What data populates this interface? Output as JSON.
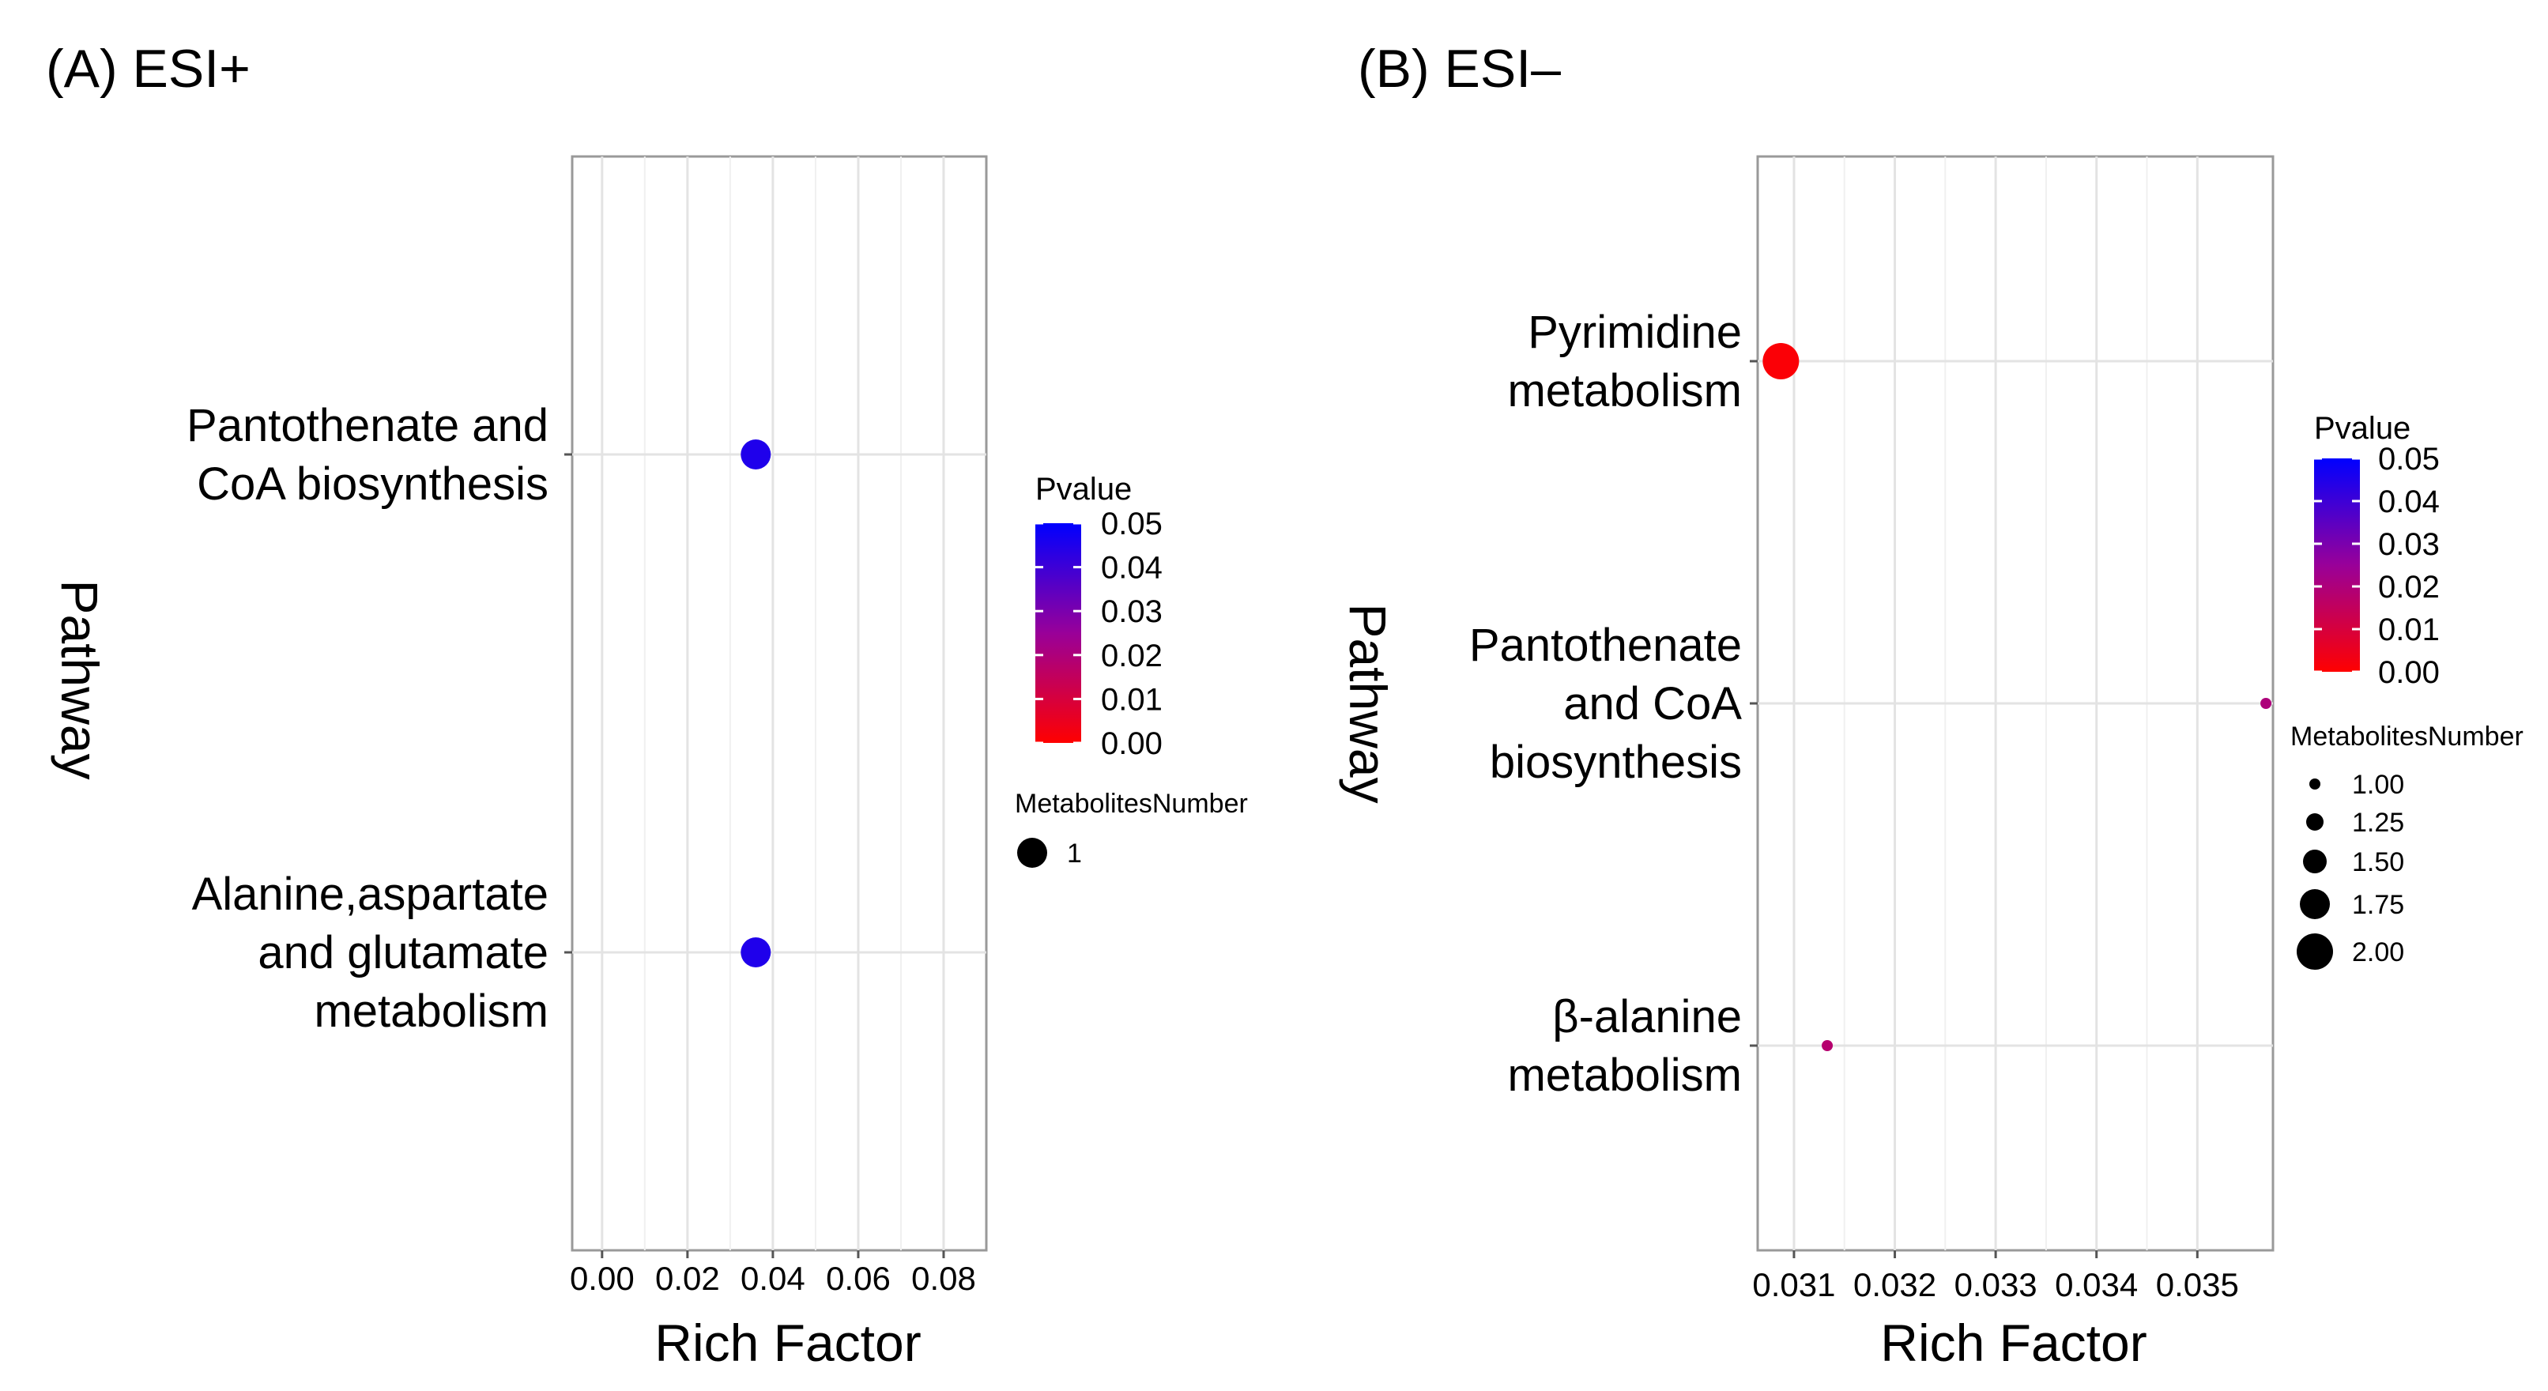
{
  "chart_data": [
    {
      "panel_label": "(A) ESI+",
      "type": "scatter",
      "xlabel": "Rich Factor",
      "ylabel": "Pathway",
      "xlim": [
        -0.007,
        0.09
      ],
      "x_ticks": [
        0.0,
        0.02,
        0.04,
        0.06,
        0.08
      ],
      "x_tick_labels": [
        "0.00",
        "0.02",
        "0.04",
        "0.06",
        "0.08"
      ],
      "categories_top_to_bottom": [
        [
          "Pantothenate and",
          "CoA biosynthesis"
        ],
        [
          "Alanine,aspartate",
          "and glutamate",
          "metabolism"
        ]
      ],
      "points": [
        {
          "pathway_index": 0,
          "rich_factor": 0.036,
          "pvalue": 0.045,
          "metabolites_number": 1
        },
        {
          "pathway_index": 1,
          "rich_factor": 0.036,
          "pvalue": 0.045,
          "metabolites_number": 1
        }
      ],
      "color_legend": {
        "title": "Pvalue",
        "ticks": [
          "0.05",
          "0.04",
          "0.03",
          "0.02",
          "0.01",
          "0.00"
        ],
        "range": [
          0.0,
          0.05
        ],
        "low_color": "#ff0000",
        "high_color": "#0000ff"
      },
      "size_legend": {
        "title": "MetabolitesNumber",
        "entries": [
          {
            "label": "1",
            "value": 1
          }
        ],
        "range": [
          1,
          1
        ]
      }
    },
    {
      "panel_label": "(B) ESI–",
      "type": "scatter",
      "xlabel": "Rich Factor",
      "ylabel": "Pathway",
      "xlim": [
        0.03064,
        0.03575
      ],
      "x_ticks": [
        0.031,
        0.032,
        0.033,
        0.034,
        0.035
      ],
      "x_tick_labels": [
        "0.031",
        "0.032",
        "0.033",
        "0.034",
        "0.035"
      ],
      "categories_top_to_bottom": [
        [
          "Pyrimidine",
          "metabolism"
        ],
        [
          "Pantothenate",
          "and CoA",
          "biosynthesis"
        ],
        [
          "β-alanine",
          "metabolism"
        ]
      ],
      "points": [
        {
          "pathway_index": 0,
          "rich_factor": 0.03087,
          "pvalue": 0.001,
          "metabolites_number": 2
        },
        {
          "pathway_index": 1,
          "rich_factor": 0.03568,
          "pvalue": 0.02,
          "metabolites_number": 1
        },
        {
          "pathway_index": 2,
          "rich_factor": 0.03133,
          "pvalue": 0.018,
          "metabolites_number": 1
        }
      ],
      "color_legend": {
        "title": "Pvalue",
        "ticks": [
          "0.05",
          "0.04",
          "0.03",
          "0.02",
          "0.01",
          "0.00"
        ],
        "range": [
          0.0,
          0.05
        ],
        "low_color": "#ff0000",
        "high_color": "#0000ff"
      },
      "size_legend": {
        "title": "MetabolitesNumber",
        "entries": [
          {
            "label": "1.00",
            "value": 1.0
          },
          {
            "label": "1.25",
            "value": 1.25
          },
          {
            "label": "1.50",
            "value": 1.5
          },
          {
            "label": "1.75",
            "value": 1.75
          },
          {
            "label": "2.00",
            "value": 2.0
          }
        ],
        "range": [
          1,
          2
        ]
      }
    }
  ]
}
